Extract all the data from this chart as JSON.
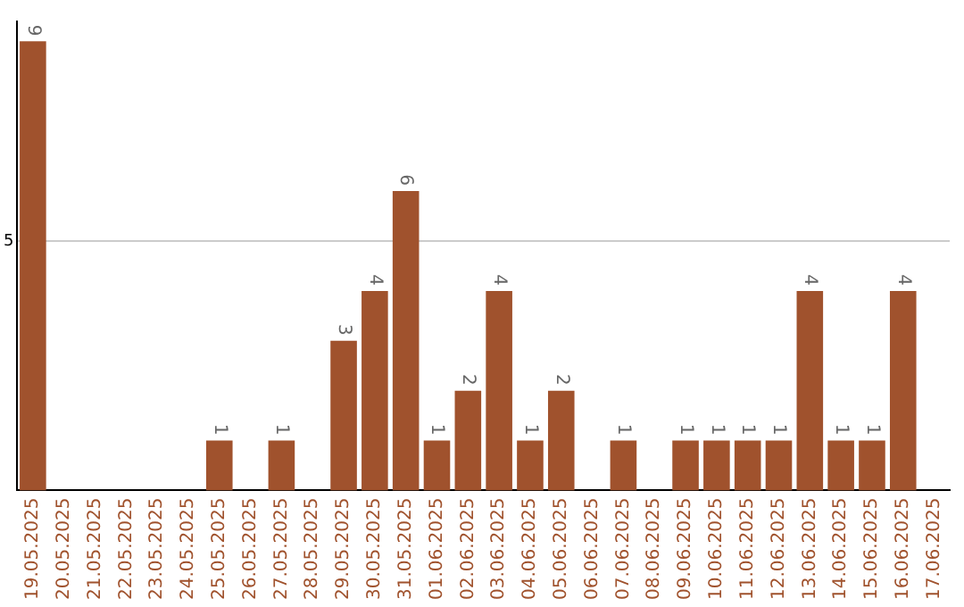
{
  "chart_data": {
    "type": "bar",
    "categories": [
      "19.05.2025",
      "20.05.2025",
      "21.05.2025",
      "22.05.2025",
      "23.05.2025",
      "24.05.2025",
      "25.05.2025",
      "26.05.2025",
      "27.05.2025",
      "28.05.2025",
      "29.05.2025",
      "30.05.2025",
      "31.05.2025",
      "01.06.2025",
      "02.06.2025",
      "03.06.2025",
      "04.06.2025",
      "05.06.2025",
      "06.06.2025",
      "07.06.2025",
      "08.06.2025",
      "09.06.2025",
      "10.06.2025",
      "11.06.2025",
      "12.06.2025",
      "13.06.2025",
      "14.06.2025",
      "15.06.2025",
      "16.06.2025",
      "17.06.2025"
    ],
    "values": [
      9,
      0,
      0,
      0,
      0,
      0,
      1,
      0,
      1,
      0,
      3,
      4,
      6,
      1,
      2,
      4,
      1,
      2,
      0,
      1,
      0,
      1,
      1,
      1,
      1,
      4,
      1,
      1,
      4,
      0
    ],
    "value_labels": [
      "9",
      null,
      null,
      null,
      null,
      null,
      "1",
      null,
      "1",
      null,
      "3",
      "4",
      "6",
      "1",
      "2",
      "4",
      "1",
      "2",
      null,
      "1",
      null,
      "1",
      "1",
      "1",
      "1",
      "4",
      "1",
      "1",
      "4",
      null
    ],
    "color": "#a0522d",
    "ylim": [
      0,
      9.4
    ],
    "yticks": [
      5
    ],
    "grid": "y"
  }
}
